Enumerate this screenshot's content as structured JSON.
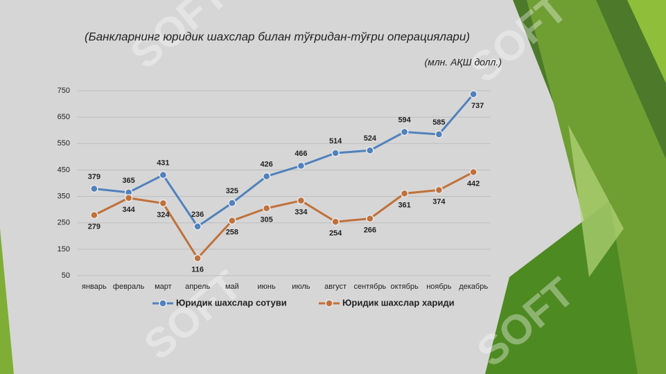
{
  "chart_data": {
    "type": "line",
    "title": "(Банкларнинг юридик шахслар билан тўғридан-тўғри операциялари)",
    "subtitle": "(млн. АҚШ долл.)",
    "watermark": "SOFT",
    "categories": [
      "январь",
      "февраль",
      "март",
      "апрель",
      "май",
      "июнь",
      "июль",
      "август",
      "сентябрь",
      "октябрь",
      "ноябрь",
      "декабрь"
    ],
    "series": [
      {
        "name": "Юридик шахслар сотуви",
        "color": "#4f81bd",
        "values": [
          379,
          365,
          431,
          236,
          325,
          426,
          466,
          514,
          524,
          594,
          585,
          737
        ]
      },
      {
        "name": "Юридик шахслар хариди",
        "color": "#c0713a",
        "values": [
          279,
          344,
          324,
          116,
          258,
          305,
          334,
          254,
          266,
          361,
          374,
          442
        ]
      }
    ],
    "ylim": [
      50,
      750
    ],
    "yticks": [
      50,
      150,
      250,
      350,
      450,
      550,
      650,
      750
    ],
    "grid": true,
    "legend": "bottom"
  }
}
